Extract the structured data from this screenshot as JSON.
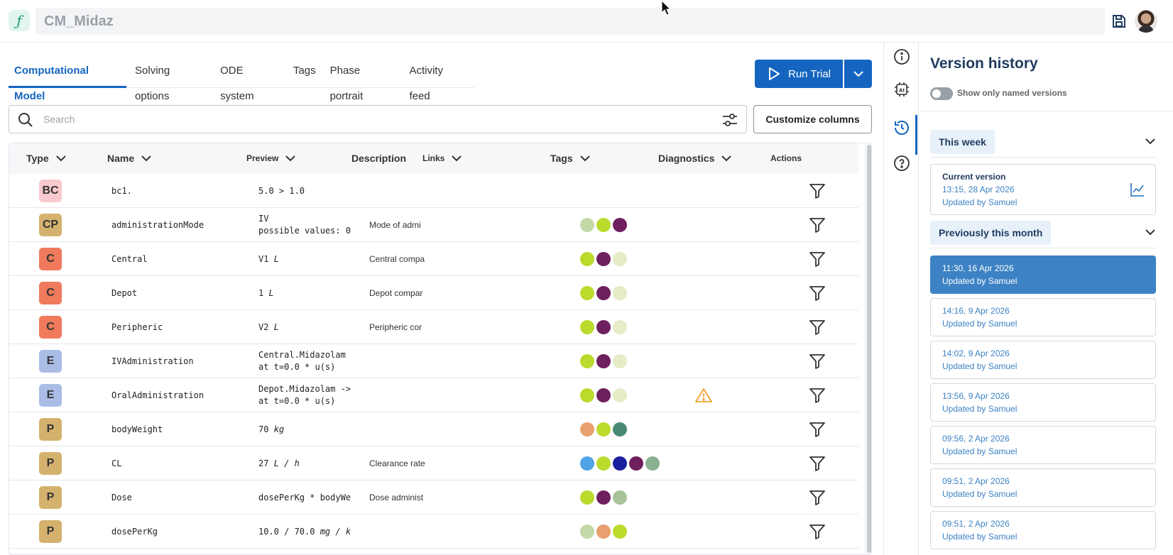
{
  "app": {
    "model_name": "CM_Midaz",
    "logo_glyph": "ƒ"
  },
  "tabs": [
    {
      "label": "Computational Model",
      "active": true
    },
    {
      "label": "Solving options",
      "active": false
    },
    {
      "label": "ODE system",
      "active": false
    },
    {
      "label": "Tags",
      "active": false
    },
    {
      "label": "Phase portrait",
      "active": false
    },
    {
      "label": "Activity feed",
      "active": false
    }
  ],
  "run": {
    "label": "Run Trial"
  },
  "search": {
    "placeholder": "Search"
  },
  "customize_label": "Customize columns",
  "columns": {
    "type": "Type",
    "name": "Name",
    "preview": "Preview",
    "description": "Description",
    "links": "Links",
    "tags": "Tags",
    "diagnostics": "Diagnostics",
    "actions": "Actions"
  },
  "rows": [
    {
      "type": "BC",
      "type_color": "#f8c9cd",
      "name": "bc1.",
      "preview_1": "5.0 > 1.0",
      "preview_unit": "",
      "preview_2": "",
      "description": "",
      "tags": [],
      "warning": false
    },
    {
      "type": "CP",
      "type_color": "#d4b26e",
      "name": "administrationMode",
      "preview_1": "IV",
      "preview_unit": "",
      "preview_2": "possible values: 0",
      "description": "Mode of admi",
      "tags": [
        "#c5d8a8",
        "#bada2c",
        "#6e1f5e"
      ],
      "warning": false
    },
    {
      "type": "C",
      "type_color": "#f07a5c",
      "name": "Central",
      "preview_1": "V1 ",
      "preview_unit": "L",
      "preview_2": "",
      "description": "Central compa",
      "tags": [
        "#bada2c",
        "#6e1f5e",
        "#e6ecc6"
      ],
      "warning": false
    },
    {
      "type": "C",
      "type_color": "#f07a5c",
      "name": "Depot",
      "preview_1": "1 ",
      "preview_unit": "L",
      "preview_2": "",
      "description": "Depot compar",
      "tags": [
        "#bada2c",
        "#6e1f5e",
        "#e6ecc6"
      ],
      "warning": false
    },
    {
      "type": "C",
      "type_color": "#f07a5c",
      "name": "Peripheric",
      "preview_1": "V2 ",
      "preview_unit": "L",
      "preview_2": "",
      "description": "Peripheric cor",
      "tags": [
        "#bada2c",
        "#6e1f5e",
        "#e6ecc6"
      ],
      "warning": false
    },
    {
      "type": "E",
      "type_color": "#aabde6",
      "name": "IVAdministration",
      "preview_1": "Central.Midazolam",
      "preview_unit": "",
      "preview_2": "at t=0.0 * u(s)",
      "description": "",
      "tags": [
        "#bada2c",
        "#6e1f5e",
        "#e6ecc6"
      ],
      "warning": false
    },
    {
      "type": "E",
      "type_color": "#aabde6",
      "name": "OralAdministration",
      "preview_1": "Depot.Midazolam ->",
      "preview_unit": "",
      "preview_2": "at t=0.0 * u(s)",
      "description": "",
      "tags": [
        "#bada2c",
        "#6e1f5e",
        "#e6ecc6"
      ],
      "warning": true
    },
    {
      "type": "P",
      "type_color": "#d4b26e",
      "name": "bodyWeight",
      "preview_1": "70 ",
      "preview_unit": "kg",
      "preview_2": "",
      "description": "",
      "tags": [
        "#e8a06e",
        "#bada2c",
        "#4a8a72"
      ],
      "warning": false
    },
    {
      "type": "P",
      "type_color": "#d4b26e",
      "name": "CL",
      "preview_1": "27 ",
      "preview_unit": "L / h",
      "preview_2": "",
      "description": "Clearance rate",
      "tags": [
        "#4fa3e6",
        "#bada2c",
        "#1a1f9e",
        "#6e1f5e",
        "#8ab092"
      ],
      "warning": false
    },
    {
      "type": "P",
      "type_color": "#d4b26e",
      "name": "Dose",
      "preview_1": "dosePerKg * bodyWe",
      "preview_unit": "",
      "preview_2": "",
      "description": "Dose administ",
      "tags": [
        "#bada2c",
        "#6e1f5e",
        "#a8c29a"
      ],
      "warning": false
    },
    {
      "type": "P",
      "type_color": "#d4b26e",
      "name": "dosePerKg",
      "preview_1": "10.0 / 70.0 ",
      "preview_unit": "mg / kg",
      "preview_2": "",
      "description": "",
      "tags": [
        "#c5d8a8",
        "#e8a06e",
        "#bada2c"
      ],
      "warning": false
    }
  ],
  "version_history": {
    "title": "Version history",
    "toggle_label": "Show only named versions",
    "this_week_label": "This week",
    "current": {
      "label": "Current version",
      "timestamp": "13:15, 28 Apr 2026",
      "by": "Updated by Samuel"
    },
    "previous_label": "Previously this month",
    "versions": [
      {
        "timestamp": "11:30, 16 Apr 2026",
        "by": "Updated by Samuel",
        "selected": true
      },
      {
        "timestamp": "14:16, 9 Apr 2026",
        "by": "Updated by Samuel",
        "selected": false
      },
      {
        "timestamp": "14:02, 9 Apr 2026",
        "by": "Updated by Samuel",
        "selected": false
      },
      {
        "timestamp": "13:56, 9 Apr 2026",
        "by": "Updated by Samuel",
        "selected": false
      },
      {
        "timestamp": "09:56, 2 Apr 2026",
        "by": "Updated by Samuel",
        "selected": false
      },
      {
        "timestamp": "09:51, 2 Apr 2026",
        "by": "Updated by Samuel",
        "selected": false
      },
      {
        "timestamp": "09:51, 2 Apr 2026",
        "by": "Updated by Samuel",
        "selected": false
      }
    ]
  },
  "colors": {
    "accent": "#1565c0",
    "selected_version": "#3d82c4",
    "warning": "#f0a030"
  }
}
